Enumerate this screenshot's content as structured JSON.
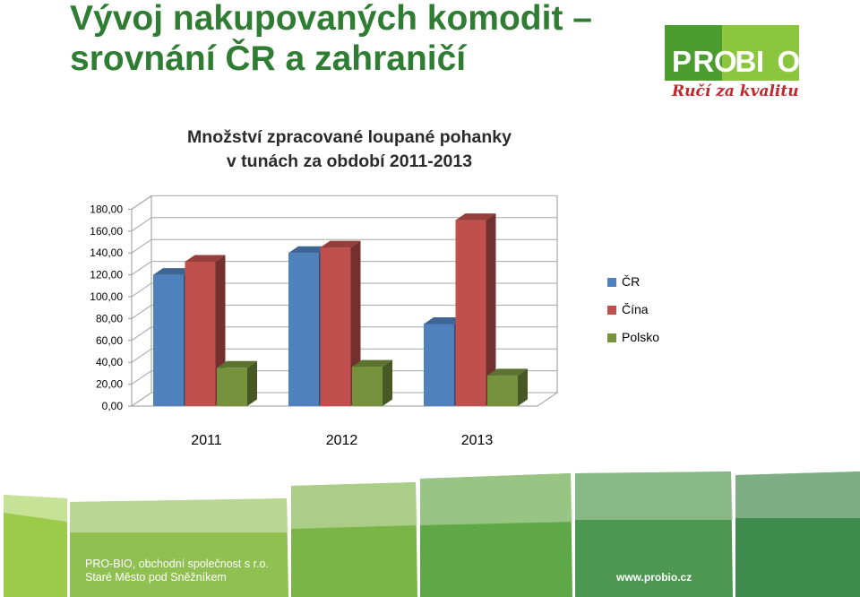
{
  "slide": {
    "title_line1": "Vývoj nakupovaných komodit –",
    "title_line2": "srovnání ČR a zahraničí"
  },
  "logo": {
    "letters": [
      "P",
      "R",
      "O",
      "B",
      "I",
      "O"
    ],
    "tagline": "Ručí za kvalitu",
    "colors": {
      "green": "#4a9d2e",
      "light_green": "#8cc63f",
      "red": "#c2272d"
    }
  },
  "chart_data": {
    "type": "bar",
    "title_line1": "Množství zpracované loupané pohanky",
    "title_line2": "v tunách za období 2011-2013",
    "categories": [
      "2011",
      "2012",
      "2013"
    ],
    "series": [
      {
        "name": "ČR",
        "values": [
          120,
          140,
          75
        ],
        "color": "#4f81bd"
      },
      {
        "name": "Čína",
        "values": [
          132,
          145,
          170
        ],
        "color": "#c0504d"
      },
      {
        "name": "Polsko",
        "values": [
          35,
          36,
          28
        ],
        "color": "#76923c"
      }
    ],
    "ylim": [
      0,
      180
    ],
    "yticks": [
      "0,00",
      "20,00",
      "40,00",
      "60,00",
      "80,00",
      "100,00",
      "120,00",
      "140,00",
      "160,00",
      "180,00"
    ],
    "grid": true,
    "legend_position": "right",
    "style": "3d-clustered-column"
  },
  "footer": {
    "company": "PRO-BIO, obchodní společnost s r.o.",
    "city": "Staré Město pod Sněžníkem",
    "web": "www.probio.cz"
  }
}
